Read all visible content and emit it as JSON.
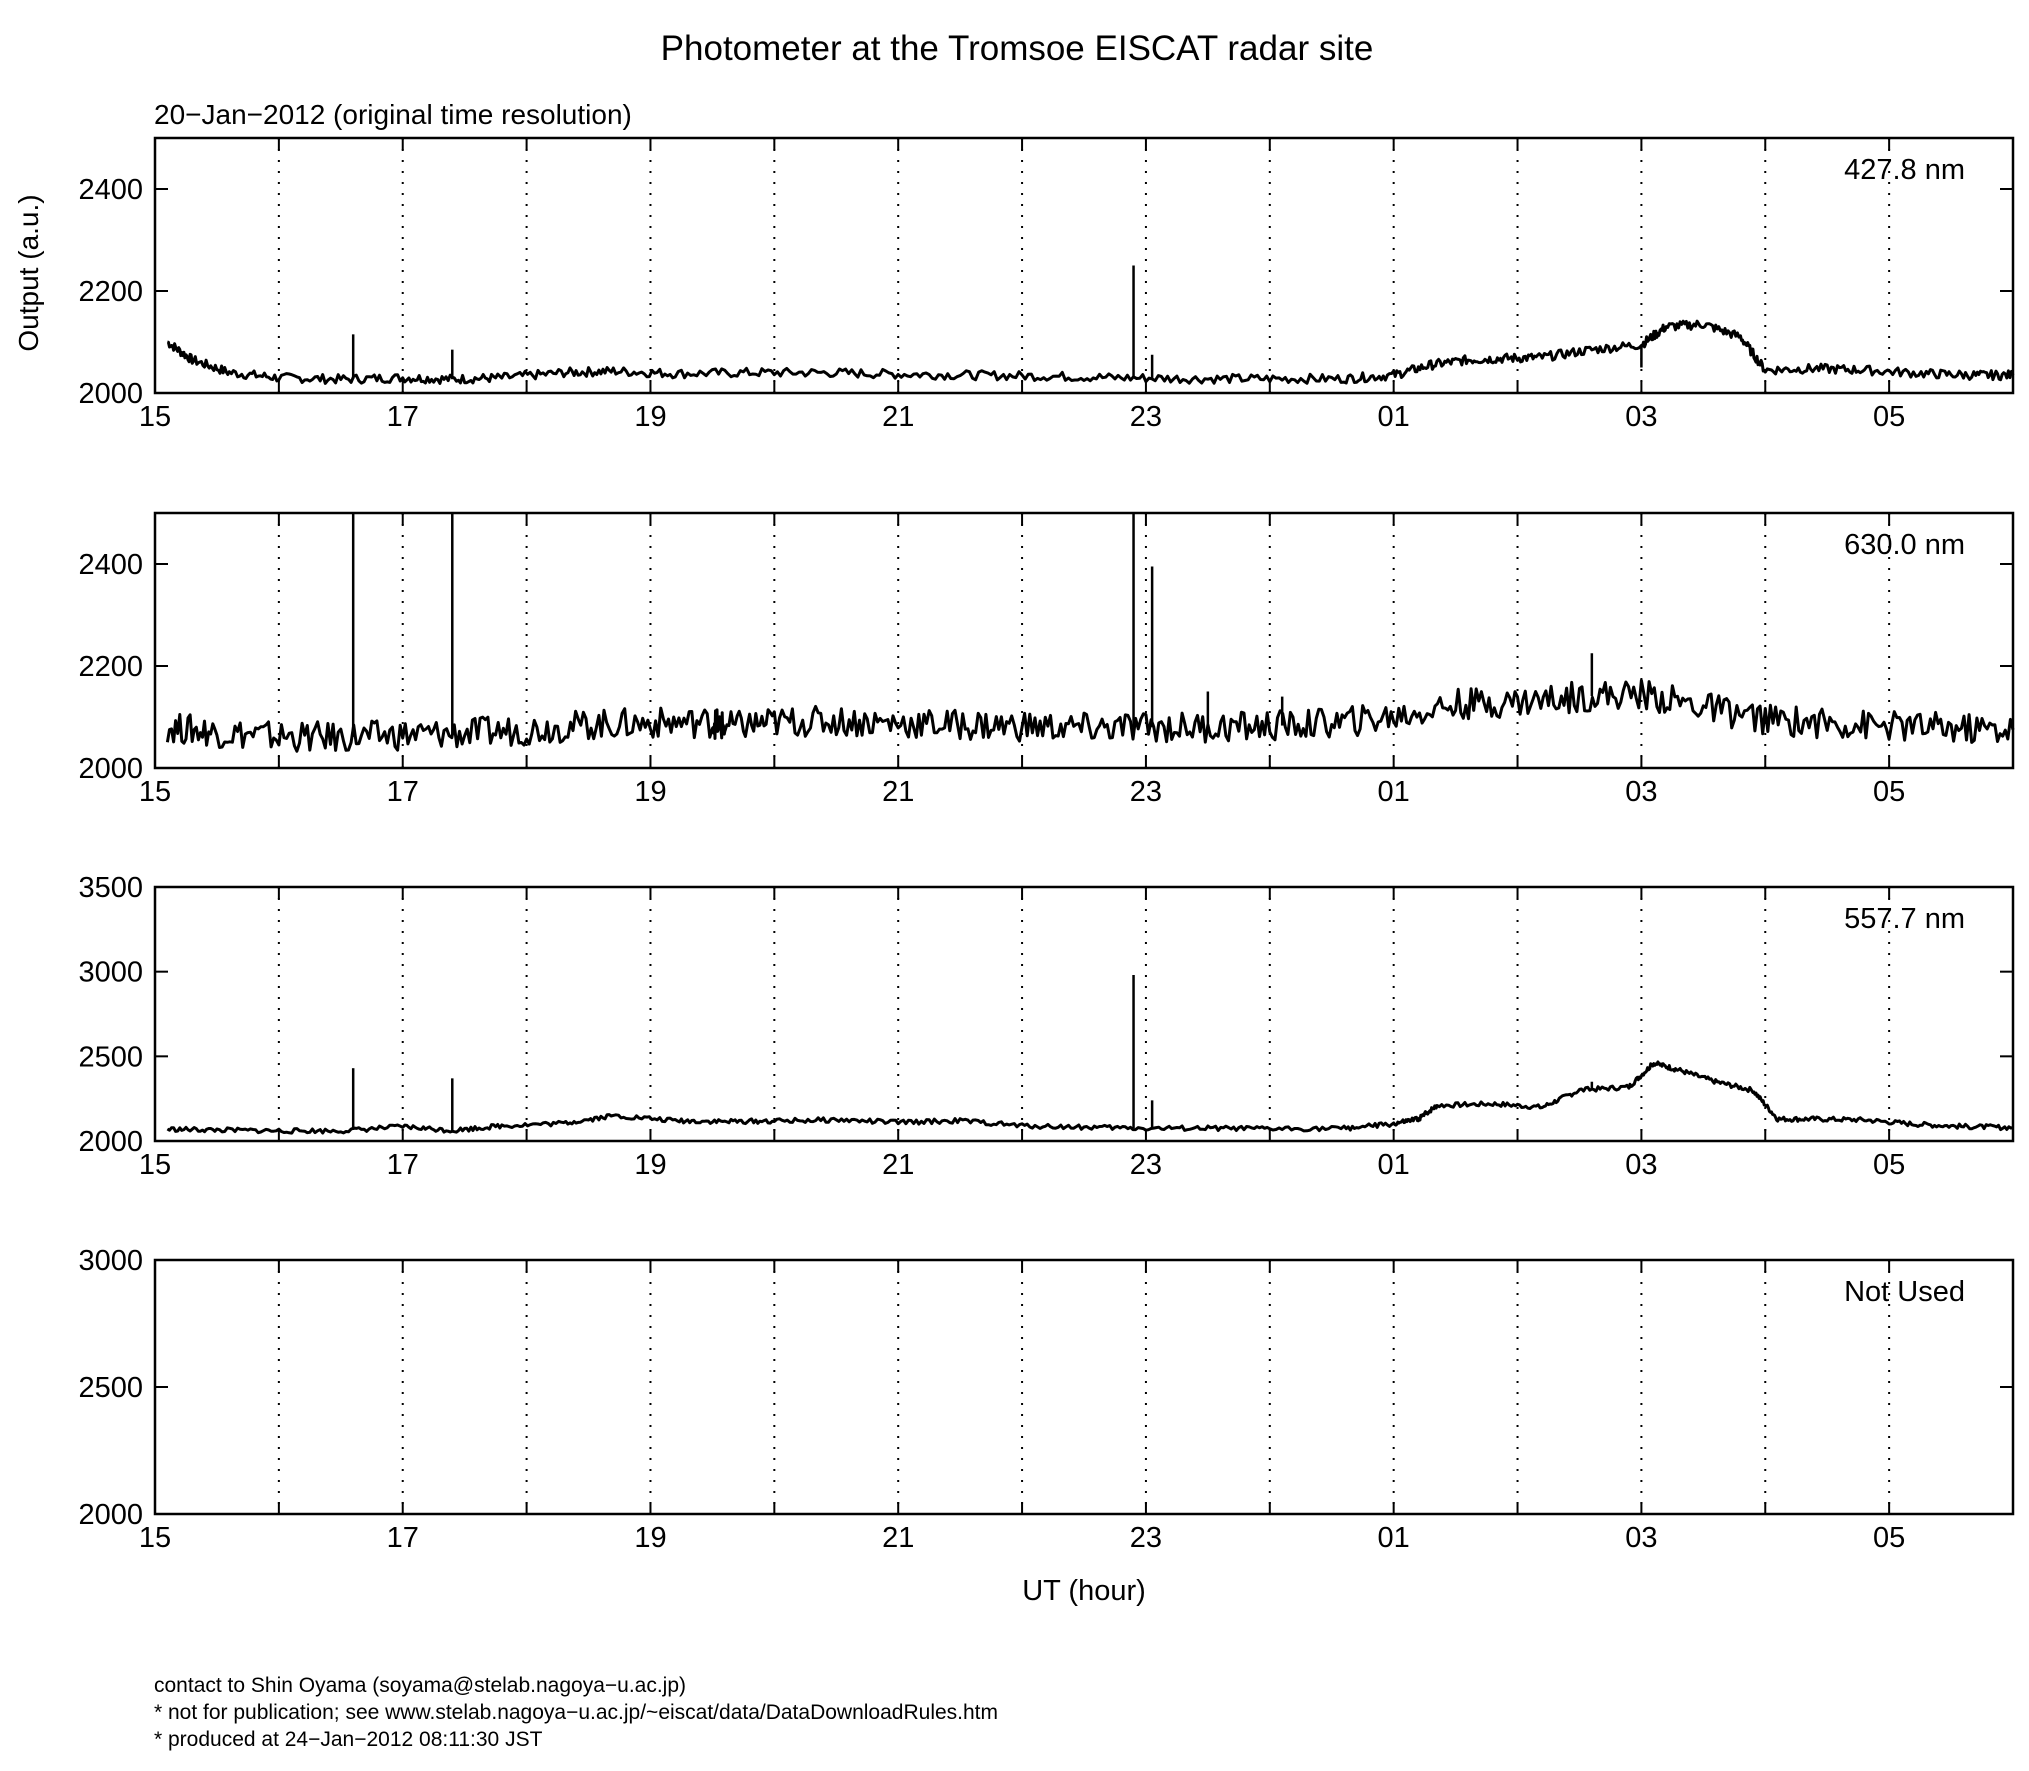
{
  "title": "Photometer at the Tromsoe EISCAT radar site",
  "subtitle": "20−Jan−2012 (original time resolution)",
  "ylabel": "Output (a.u.)",
  "xlabel": "UT (hour)",
  "footer": {
    "line1": "contact to Shin Oyama (soyama@stelab.nagoya−u.ac.jp)",
    "line2": "* not for publication; see www.stelab.nagoya−u.ac.jp/~eiscat/data/DataDownloadRules.htm",
    "line3": "* produced at 24−Jan−2012 08:11:30 JST"
  },
  "chart_data": [
    {
      "type": "line",
      "panel_label": "427.8 nm",
      "xlim": [
        15,
        30
      ],
      "ylim": [
        2000,
        2500
      ],
      "yticks": [
        2000,
        2200,
        2400
      ],
      "xtick_labels": [
        "15",
        "17",
        "19",
        "21",
        "23",
        "01",
        "03",
        "05"
      ],
      "grid": "vertical dotted at each hour",
      "color": "#000000",
      "x": [
        15.1,
        15.3,
        15.6,
        16.0,
        16.5,
        17.0,
        17.4,
        17.8,
        18.3,
        18.7,
        19.2,
        19.8,
        20.4,
        21.0,
        21.6,
        22.2,
        22.8,
        23.4,
        24.0,
        24.6,
        25.0,
        25.3,
        25.6,
        25.9,
        26.2,
        26.6,
        27.0,
        27.2,
        27.5,
        27.8,
        28.0,
        28.4,
        28.8,
        29.3,
        29.7,
        30.0
      ],
      "y": [
        2100,
        2065,
        2040,
        2030,
        2027,
        2030,
        2027,
        2030,
        2040,
        2043,
        2038,
        2040,
        2040,
        2037,
        2035,
        2033,
        2030,
        2028,
        2028,
        2028,
        2035,
        2055,
        2065,
        2068,
        2070,
        2085,
        2095,
        2130,
        2135,
        2110,
        2045,
        2048,
        2045,
        2038,
        2035,
        2035
      ],
      "spikes": [
        [
          16.6,
          2115
        ],
        [
          17.4,
          2085
        ],
        [
          22.9,
          2250
        ],
        [
          23.05,
          2075
        ],
        [
          27.0,
          2050
        ]
      ]
    },
    {
      "type": "line",
      "panel_label": "630.0 nm",
      "xlim": [
        15,
        30
      ],
      "ylim": [
        2000,
        2500
      ],
      "yticks": [
        2000,
        2200,
        2400
      ],
      "xtick_labels": [
        "15",
        "17",
        "19",
        "21",
        "23",
        "01",
        "03",
        "05"
      ],
      "grid": "vertical dotted at each hour",
      "color": "#000000",
      "x": [
        15.1,
        15.5,
        16.0,
        16.5,
        17.0,
        17.5,
        18.0,
        18.5,
        19.0,
        19.5,
        19.6,
        20.0,
        20.5,
        21.0,
        21.5,
        22.0,
        22.5,
        23.0,
        23.5,
        24.0,
        24.5,
        25.0,
        25.5,
        26.0,
        26.5,
        27.0,
        27.5,
        28.0,
        28.5,
        29.0,
        29.5,
        30.0
      ],
      "y": [
        2080,
        2070,
        2062,
        2060,
        2065,
        2068,
        2075,
        2085,
        2088,
        2090,
        2080,
        2090,
        2092,
        2088,
        2085,
        2082,
        2078,
        2080,
        2080,
        2082,
        2088,
        2100,
        2125,
        2130,
        2140,
        2145,
        2120,
        2095,
        2088,
        2082,
        2078,
        2075
      ],
      "spikes": [
        [
          16.6,
          2500
        ],
        [
          17.4,
          2500
        ],
        [
          22.9,
          2500
        ],
        [
          23.05,
          2395
        ],
        [
          23.5,
          2150
        ],
        [
          24.1,
          2140
        ],
        [
          26.6,
          2225
        ]
      ]
    },
    {
      "type": "line",
      "panel_label": "557.7 nm",
      "xlim": [
        15,
        30
      ],
      "ylim": [
        2000,
        3500
      ],
      "yticks": [
        2000,
        2500,
        3000,
        3500
      ],
      "xtick_labels": [
        "15",
        "17",
        "19",
        "21",
        "23",
        "01",
        "03",
        "05"
      ],
      "grid": "vertical dotted at each hour",
      "color": "#000000",
      "x": [
        15.1,
        15.5,
        16.0,
        16.5,
        17.0,
        17.4,
        17.8,
        18.3,
        18.7,
        19.2,
        19.6,
        20.0,
        20.5,
        21.0,
        21.5,
        22.0,
        22.5,
        23.0,
        23.5,
        24.0,
        24.6,
        25.0,
        25.2,
        25.35,
        25.8,
        26.2,
        26.5,
        26.9,
        27.1,
        27.3,
        27.6,
        27.9,
        28.1,
        28.4,
        28.8,
        29.2,
        29.6,
        30.0
      ],
      "y": [
        2070,
        2065,
        2060,
        2060,
        2085,
        2062,
        2090,
        2105,
        2150,
        2120,
        2115,
        2118,
        2125,
        2110,
        2120,
        2090,
        2082,
        2075,
        2075,
        2072,
        2075,
        2100,
        2130,
        2210,
        2220,
        2200,
        2300,
        2320,
        2460,
        2420,
        2350,
        2300,
        2130,
        2130,
        2125,
        2100,
        2085,
        2080
      ],
      "spikes": [
        [
          16.6,
          2430
        ],
        [
          17.4,
          2370
        ],
        [
          22.9,
          2980
        ],
        [
          23.05,
          2240
        ],
        [
          26.6,
          2350
        ]
      ]
    },
    {
      "type": "line",
      "panel_label": "Not Used",
      "xlim": [
        15,
        30
      ],
      "ylim": [
        2000,
        3000
      ],
      "yticks": [
        2000,
        2500,
        3000
      ],
      "xtick_labels": [
        "15",
        "17",
        "19",
        "21",
        "23",
        "01",
        "03",
        "05"
      ],
      "grid": "vertical dotted at each hour",
      "color": "#000000",
      "x": [],
      "y": []
    }
  ]
}
